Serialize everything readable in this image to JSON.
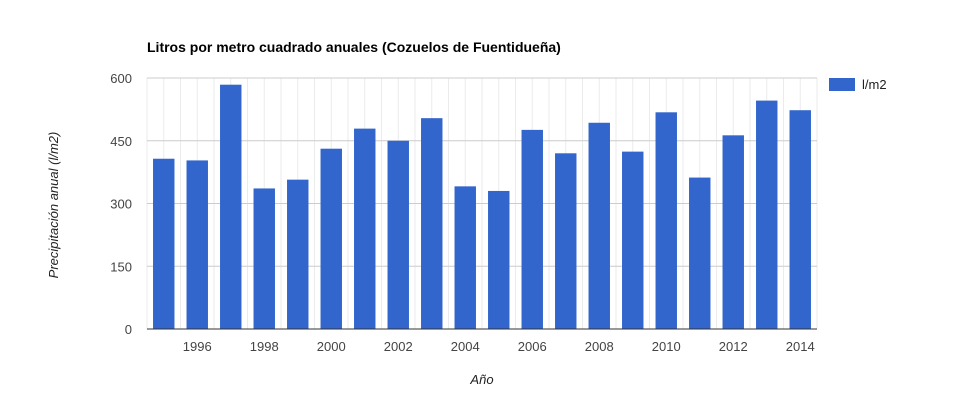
{
  "chart_data": {
    "type": "bar",
    "title": "Litros por metro cuadrado anuales (Cozuelos de Fuentidueña)",
    "xlabel": "Año",
    "ylabel": "Precipitación anual (l/m2)",
    "categories": [
      "1995",
      "1996",
      "1997",
      "1998",
      "1999",
      "2000",
      "2001",
      "2002",
      "2003",
      "2004",
      "2005",
      "2006",
      "2007",
      "2008",
      "2009",
      "2010",
      "2011",
      "2012",
      "2013",
      "2014"
    ],
    "x_tick_labels": [
      "1996",
      "1998",
      "2000",
      "2002",
      "2004",
      "2006",
      "2008",
      "2010",
      "2012",
      "2014"
    ],
    "series": [
      {
        "name": "l/m2",
        "color": "#3366cc",
        "values": [
          407,
          403,
          584,
          336,
          357,
          431,
          479,
          450,
          504,
          341,
          330,
          476,
          420,
          493,
          424,
          518,
          362,
          463,
          546,
          523
        ]
      }
    ],
    "y_ticks": [
      0,
      150,
      300,
      450,
      600
    ],
    "ylim": [
      0,
      600
    ],
    "grid": true,
    "legend_position": "right"
  }
}
